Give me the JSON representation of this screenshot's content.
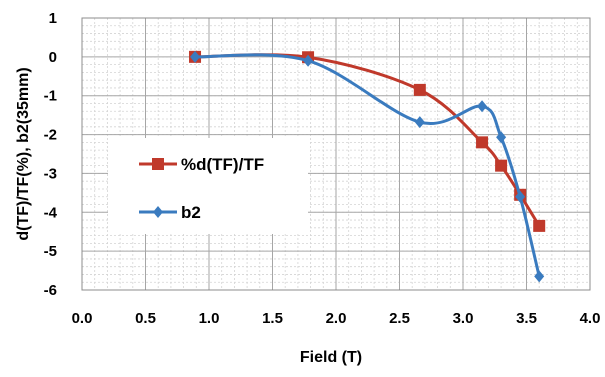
{
  "chart_data": {
    "type": "line",
    "xlabel": "Field (T)",
    "ylabel": "d(TF)/TF(%),  b2(35mm)",
    "xlim": [
      0,
      4
    ],
    "ylim": [
      -6,
      1
    ],
    "x_ticks": [
      "0.0",
      "0.5",
      "1.0",
      "1.5",
      "2.0",
      "2.5",
      "3.0",
      "3.5",
      "4.0"
    ],
    "y_ticks": [
      "1",
      "0",
      "-1",
      "-2",
      "-3",
      "-4",
      "-5",
      "-6"
    ],
    "grid": true,
    "minor_grid": true,
    "legend_position": "left-middle",
    "series": [
      {
        "name": "%d(TF)/TF",
        "color": "#c0392b",
        "marker": "square",
        "smooth": true,
        "x": [
          0.89,
          1.78,
          2.66,
          3.15,
          3.3,
          3.45,
          3.6
        ],
        "y": [
          0.0,
          -0.01,
          -0.85,
          -2.2,
          -2.8,
          -3.55,
          -4.35
        ]
      },
      {
        "name": "b2",
        "color": "#3a7bbf",
        "marker": "diamond",
        "smooth": true,
        "x": [
          0.89,
          1.78,
          2.66,
          3.15,
          3.3,
          3.45,
          3.6
        ],
        "y": [
          0.0,
          -0.1,
          -1.68,
          -1.27,
          -2.07,
          -3.6,
          -5.65
        ]
      }
    ]
  }
}
